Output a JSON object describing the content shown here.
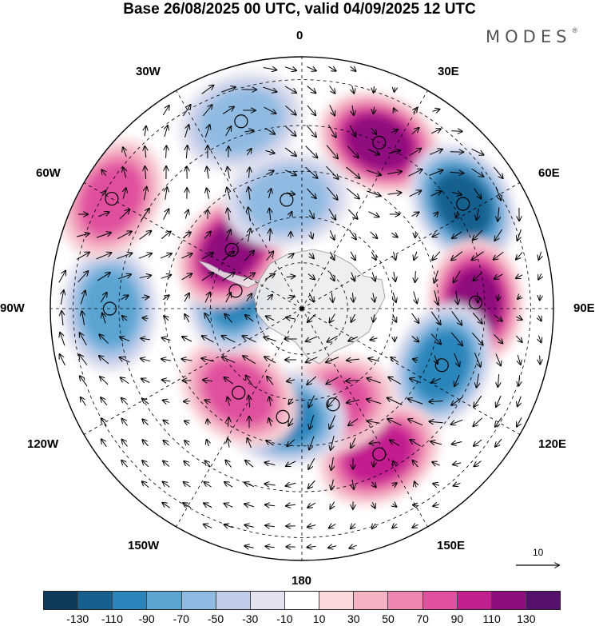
{
  "title": "Base 26/08/2025 00 UTC, valid 04/09/2025 12 UTC",
  "brand": "MODES",
  "brand_mark": "®",
  "longitude_labels": {
    "lon_0": "0",
    "lon_30e": "30E",
    "lon_60e": "60E",
    "lon_90e": "90E",
    "lon_120e": "120E",
    "lon_150e": "150E",
    "lon_180": "180",
    "lon_150w": "150W",
    "lon_120w": "120W",
    "lon_90w": "90W",
    "lon_60w": "60W",
    "lon_30w": "30W"
  },
  "vector_scale_label": "10",
  "colorbar": {
    "colors": [
      "#0d3b5c",
      "#15608f",
      "#2b85bb",
      "#5aa4d2",
      "#8fbbe2",
      "#c0cce8",
      "#e2e2f0",
      "#ffffff",
      "#f9d9dc",
      "#f4b3c3",
      "#ee86b2",
      "#e0509e",
      "#c21f8f",
      "#8f0d7e",
      "#56106e"
    ],
    "ticks": [
      "-130",
      "-110",
      "-90",
      "-70",
      "-50",
      "-30",
      "-10",
      "10",
      "30",
      "50",
      "70",
      "90",
      "110",
      "130"
    ]
  },
  "anomaly_centers": [
    {
      "sign": "positive",
      "lon": 25,
      "colat": 40,
      "value": 110
    },
    {
      "sign": "negative",
      "lon": 57,
      "colat": 42,
      "value": -110
    },
    {
      "sign": "positive",
      "lon": 88,
      "colat": 38,
      "value": 110
    },
    {
      "sign": "negative",
      "lon": 112,
      "colat": 33,
      "value": -90
    },
    {
      "sign": "positive",
      "lon": 152,
      "colat": 36,
      "value": 90
    },
    {
      "sign": "positive",
      "lon": 162,
      "colat": 22,
      "value": 70
    },
    {
      "sign": "negative",
      "lon": -170,
      "colat": 24,
      "value": -90
    },
    {
      "sign": "positive",
      "lon": -143,
      "colat": 23,
      "value": 70
    },
    {
      "sign": "negative",
      "lon": -75,
      "colat": 15,
      "value": -90
    },
    {
      "sign": "negative",
      "lon": -90,
      "colat": 42,
      "value": -70
    },
    {
      "sign": "positive",
      "lon": -50,
      "colat": 20,
      "value": 110
    },
    {
      "sign": "positive",
      "lon": -60,
      "colat": 48,
      "value": 70
    },
    {
      "sign": "negative",
      "lon": -8,
      "colat": 24,
      "value": -50
    },
    {
      "sign": "negative",
      "lon": -18,
      "colat": 43,
      "value": -50
    }
  ]
}
